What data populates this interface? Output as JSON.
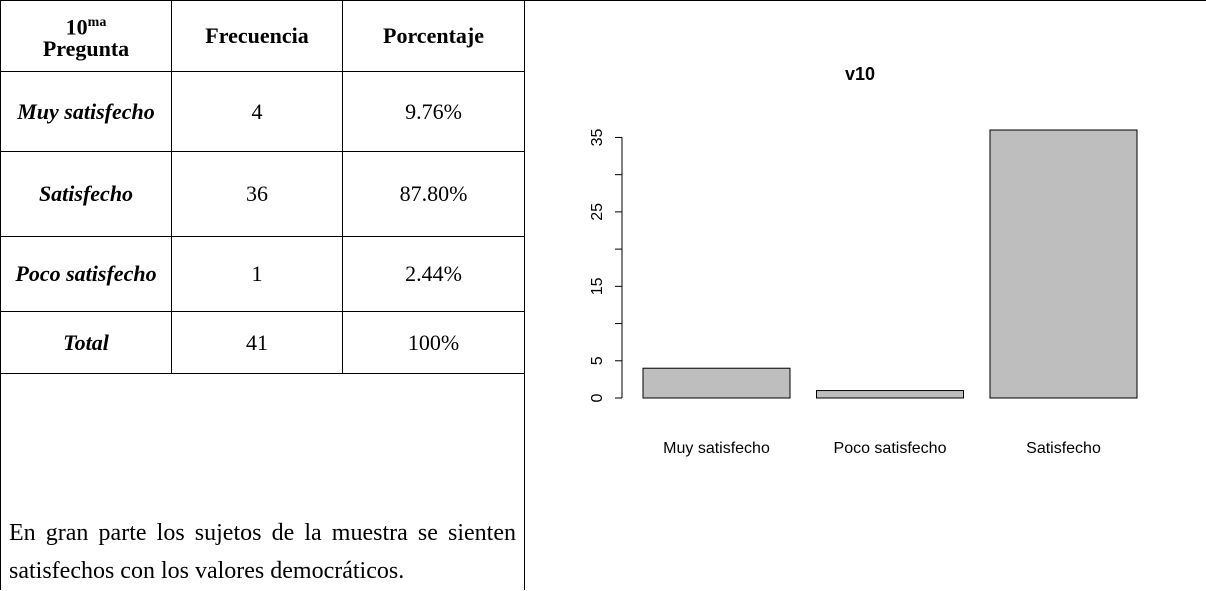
{
  "table": {
    "header": {
      "first": {
        "number": "10",
        "sup": "ma",
        "word": "Pregunta"
      },
      "columns": [
        "Frecuencia",
        "Porcentaje"
      ]
    },
    "rows": [
      [
        "Muy satisfecho",
        4,
        "9.76%"
      ],
      [
        "Satisfecho",
        36,
        "87.80%"
      ],
      [
        "Poco satisfecho",
        1,
        "2.44%"
      ],
      [
        "Total",
        41,
        "100%"
      ]
    ],
    "paragraph": "En gran parte los sujetos de la muestra se sienten satisfechos con los valores democráticos."
  },
  "chart_data": {
    "type": "bar",
    "title": "v10",
    "categories": [
      "Muy satisfecho",
      "Poco satisfecho",
      "Satisfecho"
    ],
    "values": [
      4,
      1,
      36
    ],
    "color": "#bebebe",
    "ylim": [
      0,
      36
    ],
    "yticks": [
      0,
      5,
      15,
      25,
      35
    ],
    "yminorticks": [
      10,
      20,
      30
    ]
  }
}
